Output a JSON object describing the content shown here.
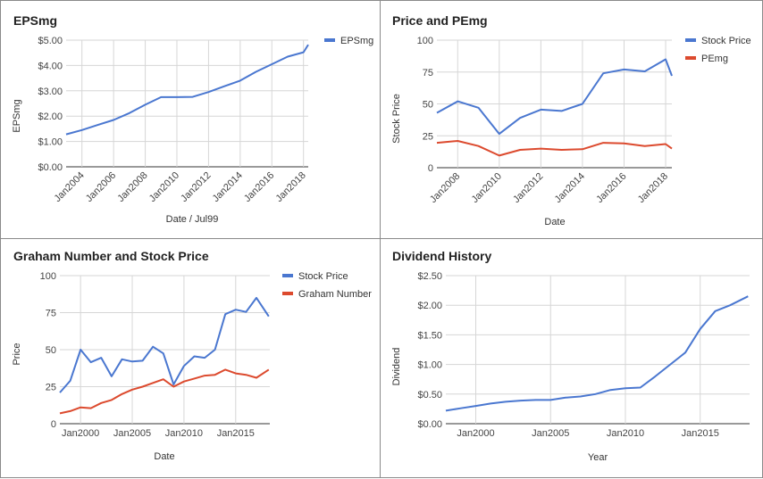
{
  "charts": [
    {
      "type": "line",
      "title": "EPSmg",
      "xlabel": "Date / Jul99",
      "ylabel": "EPSmg",
      "y_ticks": [
        "$0.00",
        "$1.00",
        "$2.00",
        "$3.00",
        "$4.00",
        "$5.00"
      ],
      "ylim": [
        0,
        5
      ],
      "xlim": [
        2003,
        2018.3
      ],
      "x_ticks": [
        {
          "v": 2004,
          "label": "Jan2004"
        },
        {
          "v": 2006,
          "label": "Jan2006"
        },
        {
          "v": 2008,
          "label": "Jan2008"
        },
        {
          "v": 2010,
          "label": "Jan2010"
        },
        {
          "v": 2012,
          "label": "Jan2012"
        },
        {
          "v": 2014,
          "label": "Jan2014"
        },
        {
          "v": 2016,
          "label": "Jan2016"
        },
        {
          "v": 2018,
          "label": "Jan2018"
        }
      ],
      "rotated_x_ticks": true,
      "grid": true,
      "legend_position": "right",
      "series": [
        {
          "name": "EPSmg",
          "color": "#4a77d0",
          "x": [
            2003,
            2004,
            2005,
            2006,
            2007,
            2008,
            2009,
            2010,
            2011,
            2012,
            2013,
            2014,
            2015,
            2016,
            2017,
            2018,
            2018.3
          ],
          "y": [
            1.28,
            1.45,
            1.65,
            1.85,
            2.12,
            2.45,
            2.75,
            2.75,
            2.76,
            2.95,
            3.18,
            3.4,
            3.75,
            4.05,
            4.35,
            4.52,
            4.82
          ]
        }
      ]
    },
    {
      "type": "line",
      "title": "Price and PEmg",
      "xlabel": "Date",
      "ylabel": "Stock Price",
      "y_ticks": [
        "0",
        "25",
        "50",
        "75",
        "100"
      ],
      "ylim": [
        0,
        100
      ],
      "xlim": [
        2007,
        2018.3
      ],
      "x_ticks": [
        {
          "v": 2008,
          "label": "Jan2008"
        },
        {
          "v": 2010,
          "label": "Jan2010"
        },
        {
          "v": 2012,
          "label": "Jan2012"
        },
        {
          "v": 2014,
          "label": "Jan2014"
        },
        {
          "v": 2016,
          "label": "Jan2016"
        },
        {
          "v": 2018,
          "label": "Jan2018"
        }
      ],
      "rotated_x_ticks": true,
      "grid": true,
      "legend_position": "right",
      "series": [
        {
          "name": "Stock Price",
          "color": "#4a77d0",
          "x": [
            2007,
            2008,
            2009,
            2010,
            2011,
            2012,
            2013,
            2014,
            2015,
            2016,
            2017,
            2018,
            2018.3
          ],
          "y": [
            43,
            52,
            47,
            26.5,
            39,
            45.5,
            44.5,
            50,
            74,
            77,
            75.5,
            85,
            72
          ]
        },
        {
          "name": "PEmg",
          "color": "#dc4a2e",
          "x": [
            2007,
            2008,
            2009,
            2010,
            2011,
            2012,
            2013,
            2014,
            2015,
            2016,
            2017,
            2018,
            2018.3
          ],
          "y": [
            19.5,
            21,
            17,
            9.5,
            14,
            15,
            14,
            14.5,
            19.5,
            19,
            17,
            18.5,
            15
          ]
        }
      ]
    },
    {
      "type": "line",
      "title": "Graham Number and Stock Price",
      "xlabel": "Date",
      "ylabel": "Price",
      "y_ticks": [
        "0",
        "25",
        "50",
        "75",
        "100"
      ],
      "ylim": [
        0,
        100
      ],
      "xlim": [
        1998,
        2018.3
      ],
      "x_ticks": [
        {
          "v": 2000,
          "label": "Jan2000"
        },
        {
          "v": 2005,
          "label": "Jan2005"
        },
        {
          "v": 2010,
          "label": "Jan2010"
        },
        {
          "v": 2015,
          "label": "Jan2015"
        }
      ],
      "rotated_x_ticks": false,
      "grid": true,
      "legend_position": "right",
      "series": [
        {
          "name": "Stock Price",
          "color": "#4a77d0",
          "x": [
            1998,
            1999,
            2000,
            2001,
            2002,
            2003,
            2004,
            2005,
            2006,
            2007,
            2008,
            2009,
            2010,
            2011,
            2012,
            2013,
            2014,
            2015,
            2016,
            2017,
            2018.2
          ],
          "y": [
            21,
            29,
            50,
            41.5,
            44.5,
            32,
            43.5,
            42,
            42.5,
            52,
            47.5,
            26.5,
            39,
            45.5,
            44.5,
            50,
            74,
            77,
            75.5,
            85,
            72.5
          ]
        },
        {
          "name": "Graham Number",
          "color": "#dc4a2e",
          "x": [
            1998,
            1999,
            2000,
            2001,
            2002,
            2003,
            2004,
            2005,
            2006,
            2007,
            2008,
            2009,
            2010,
            2011,
            2012,
            2013,
            2014,
            2015,
            2016,
            2017,
            2018.2
          ],
          "y": [
            7,
            8.5,
            11,
            10.5,
            14,
            16,
            20,
            23,
            25,
            27.5,
            30,
            25,
            28.5,
            30.5,
            32.5,
            33,
            36.5,
            34,
            33,
            31,
            36.5
          ]
        }
      ]
    },
    {
      "type": "line",
      "title": "Dividend History",
      "xlabel": "Year",
      "ylabel": "Dividend",
      "y_ticks": [
        "$0.00",
        "$0.50",
        "$1.00",
        "$1.50",
        "$2.00",
        "$2.50"
      ],
      "ylim": [
        0,
        2.5
      ],
      "xlim": [
        1998,
        2018.3
      ],
      "x_ticks": [
        {
          "v": 2000,
          "label": "Jan2000"
        },
        {
          "v": 2005,
          "label": "Jan2005"
        },
        {
          "v": 2010,
          "label": "Jan2010"
        },
        {
          "v": 2015,
          "label": "Jan2015"
        }
      ],
      "rotated_x_ticks": false,
      "grid": true,
      "legend_position": "none",
      "series": [
        {
          "name": "",
          "color": "#4a77d0",
          "x": [
            1998,
            1999,
            2000,
            2001,
            2002,
            2003,
            2004,
            2005,
            2006,
            2007,
            2008,
            2009,
            2010,
            2011,
            2012,
            2013,
            2014,
            2015,
            2016,
            2017,
            2018.2
          ],
          "y": [
            0.22,
            0.26,
            0.3,
            0.34,
            0.37,
            0.39,
            0.4,
            0.4,
            0.44,
            0.46,
            0.5,
            0.57,
            0.6,
            0.61,
            0.8,
            1.0,
            1.2,
            1.6,
            1.9,
            2.0,
            2.15
          ]
        }
      ]
    }
  ]
}
